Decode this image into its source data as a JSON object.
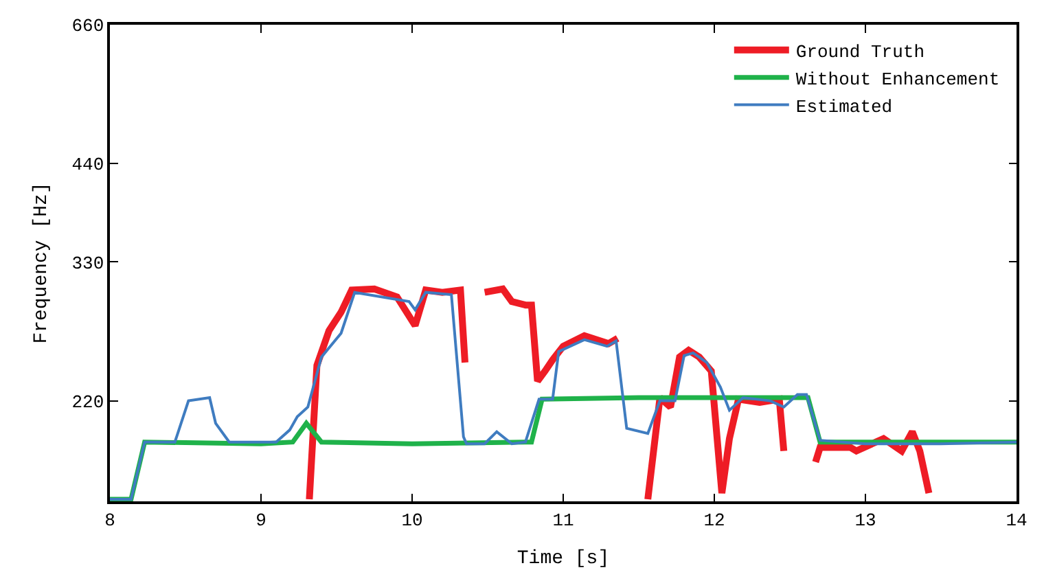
{
  "chart_data": {
    "type": "line",
    "xlabel": "Time [s]",
    "ylabel": "Frequency [Hz]",
    "log": "y",
    "xlim": [
      8,
      14
    ],
    "ylim": [
      164,
      660
    ],
    "xticks": [
      8,
      9,
      10,
      11,
      12,
      13,
      14
    ],
    "yticks": [
      220,
      330,
      440,
      660
    ],
    "legend": "top right",
    "marker": "none",
    "line_style": "solid",
    "series": [
      {
        "name": "Ground Truth",
        "color": "#ee1c25",
        "x": [
          9.32,
          9.37,
          9.45,
          9.53,
          9.6,
          9.75,
          9.9,
          10.02,
          10.09,
          10.2,
          10.32,
          10.35,
          10.4,
          10.48,
          10.6,
          10.66,
          10.75,
          10.79,
          10.83,
          10.88,
          10.93,
          11.0,
          11.14,
          11.3,
          11.36,
          11.45,
          11.56,
          11.64,
          11.71,
          11.77,
          11.83,
          11.9,
          11.98,
          12.05,
          12.1,
          12.16,
          12.3,
          12.43,
          12.46,
          12.55,
          12.67,
          12.7,
          12.9,
          12.94,
          13.12,
          13.24,
          13.31,
          13.36,
          13.42
        ],
        "values": [
          165,
          244,
          270,
          285,
          304,
          305,
          298,
          274,
          304,
          302,
          304,
          246,
          null,
          302,
          305,
          294,
          291,
          291,
          233,
          240,
          248,
          258,
          266,
          260,
          264,
          null,
          165,
          222,
          216,
          250,
          255,
          250,
          240,
          168,
          197,
          221,
          219,
          221,
          190,
          null,
          184,
          192,
          192,
          190,
          197,
          190,
          201,
          190,
          168
        ]
      },
      {
        "name": "Without Enhancement",
        "color": "#1fb24a",
        "x": [
          8.0,
          8.14,
          8.23,
          9.0,
          9.21,
          9.3,
          9.4,
          10.0,
          10.79,
          10.86,
          11.5,
          12.0,
          12.62,
          12.7,
          13.5,
          14.0
        ],
        "values": [
          165,
          165,
          195,
          194,
          195,
          206,
          195,
          194,
          195,
          221,
          222,
          222,
          222,
          195,
          195,
          195
        ]
      },
      {
        "name": "Estimated",
        "color": "#3f7cc0",
        "x": [
          8.0,
          8.14,
          8.23,
          8.43,
          8.52,
          8.66,
          8.7,
          8.79,
          9.1,
          9.19,
          9.24,
          9.31,
          9.4,
          9.53,
          9.62,
          9.98,
          10.02,
          10.09,
          10.26,
          10.34,
          10.36,
          10.48,
          10.56,
          10.66,
          10.75,
          10.84,
          10.93,
          10.97,
          11.14,
          11.29,
          11.35,
          11.42,
          11.56,
          11.64,
          11.74,
          11.8,
          11.86,
          11.95,
          12.04,
          12.1,
          12.19,
          12.37,
          12.46,
          12.55,
          12.61,
          12.7,
          13.0,
          13.5,
          14.0
        ],
        "values": [
          165,
          165,
          195,
          195,
          220,
          222,
          206,
          195,
          195,
          202,
          210,
          216,
          250,
          268,
          302,
          294,
          287,
          302,
          300,
          198,
          194,
          194,
          201,
          194,
          195,
          221,
          221,
          254,
          263,
          258,
          262,
          203,
          200,
          220,
          220,
          251,
          253,
          246,
          229,
          214,
          222,
          220,
          216,
          224,
          224,
          196,
          194,
          194,
          195
        ]
      }
    ]
  }
}
